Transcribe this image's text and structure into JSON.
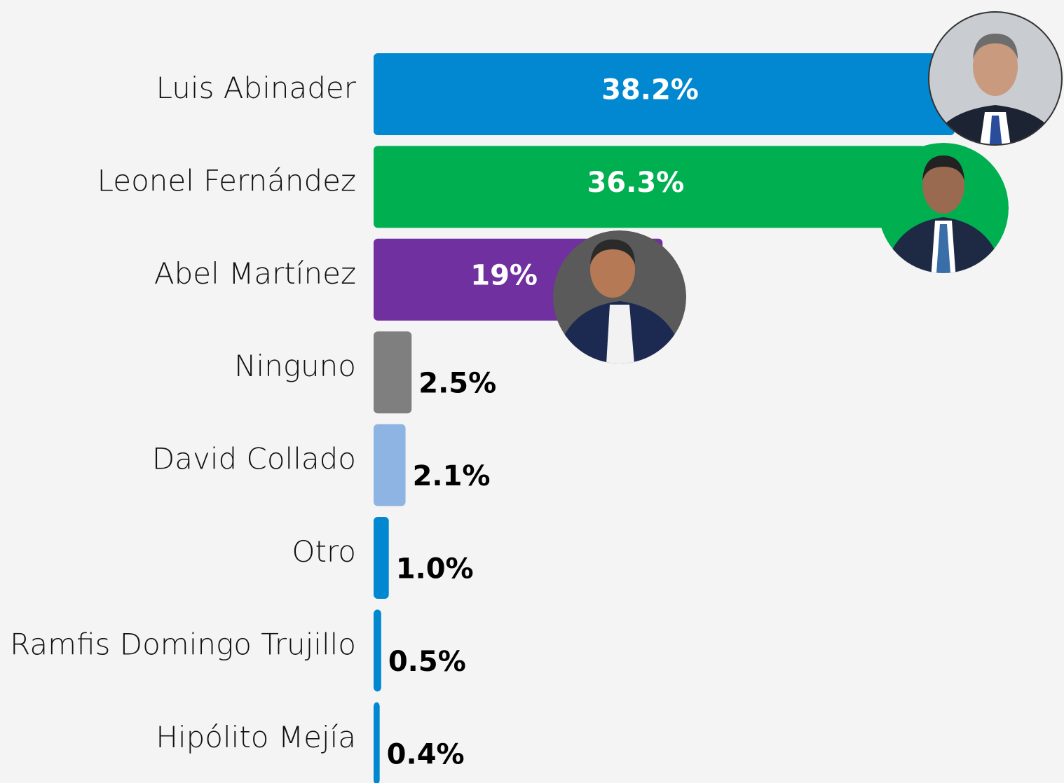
{
  "chart_data": {
    "type": "bar",
    "orientation": "horizontal",
    "categories": [
      "Luis Abinader",
      "Leonel Fernández",
      "Abel Martínez",
      "Ninguno",
      "David Collado",
      "Otro",
      "Ramfis Domingo Trujillo",
      "Hipólito Mejía"
    ],
    "values": [
      38.2,
      36.3,
      19,
      2.5,
      2.1,
      1.0,
      0.5,
      0.4
    ],
    "value_labels": [
      "38.2%",
      "36.3%",
      "19%",
      "2.5%",
      "2.1%",
      "1.0%",
      "0.5%",
      "0.4%"
    ],
    "colors": [
      "#0288d1",
      "#00b050",
      "#7030a0",
      "#7f7f7f",
      "#8eb4e3",
      "#0288d1",
      "#0288d1",
      "#0288d1"
    ]
  }
}
